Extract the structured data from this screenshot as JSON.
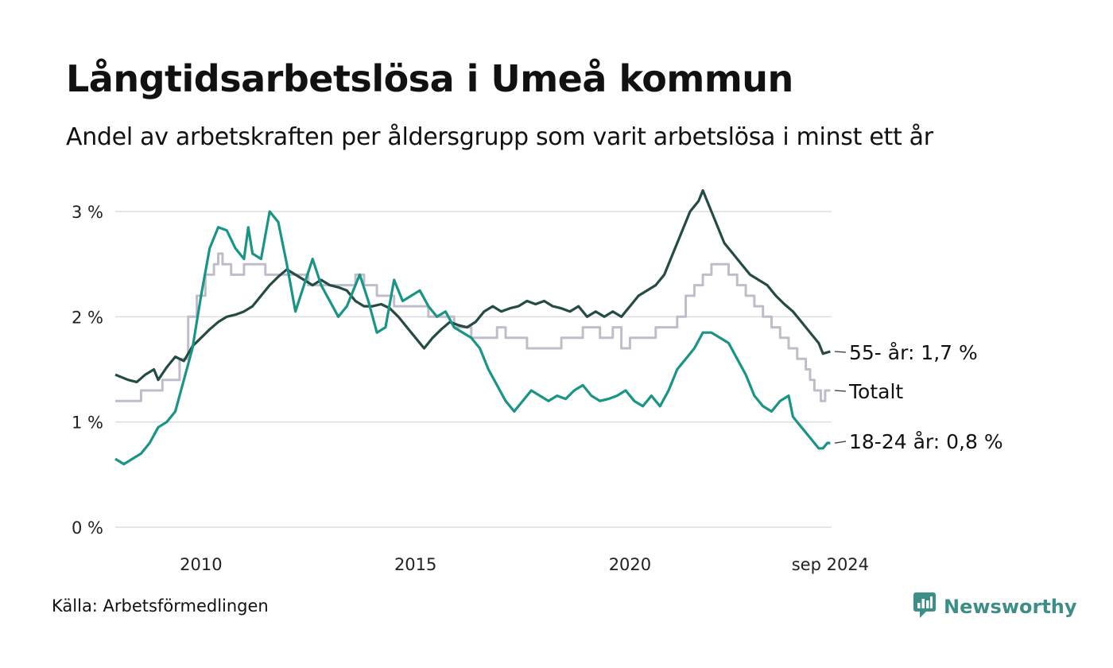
{
  "header": {
    "title": "Långtidsarbetslösa i Umeå kommun",
    "subtitle": "Andel av arbetskraften per åldersgrupp som varit arbetslösa i minst ett år"
  },
  "footer": {
    "source": "Källa: Arbetsförmedlingen",
    "brand_name": "Newsworthy",
    "brand_icon": "newsworthy-logo-icon",
    "brand_color": "#3c8e87"
  },
  "chart_data": {
    "type": "line",
    "x_unit": "year",
    "xlim": [
      2008,
      2024.7
    ],
    "ylim": [
      0,
      3.2
    ],
    "y_ticks": [
      0,
      1,
      2,
      3
    ],
    "y_tick_labels": [
      "0 %",
      "1 %",
      "2 %",
      "3 %"
    ],
    "x_ticks": [
      2010,
      2015,
      2020,
      2024.67
    ],
    "x_tick_labels": [
      "2010",
      "2015",
      "2020",
      "sep 2024"
    ],
    "grid": "horizontal",
    "legend": "direct labels at line ends (right)",
    "series": [
      {
        "name": "Totalt",
        "end_label": "Totalt",
        "color": "#c0bdca",
        "points": [
          [
            2008.0,
            1.2
          ],
          [
            2008.5,
            1.2
          ],
          [
            2008.6,
            1.3
          ],
          [
            2009.0,
            1.3
          ],
          [
            2009.1,
            1.4
          ],
          [
            2009.3,
            1.4
          ],
          [
            2009.5,
            1.6
          ],
          [
            2009.7,
            2.0
          ],
          [
            2009.9,
            2.2
          ],
          [
            2010.1,
            2.4
          ],
          [
            2010.3,
            2.5
          ],
          [
            2010.4,
            2.6
          ],
          [
            2010.5,
            2.5
          ],
          [
            2010.7,
            2.4
          ],
          [
            2011.0,
            2.5
          ],
          [
            2011.2,
            2.5
          ],
          [
            2011.5,
            2.4
          ],
          [
            2012.0,
            2.4
          ],
          [
            2012.5,
            2.3
          ],
          [
            2013.0,
            2.3
          ],
          [
            2013.3,
            2.3
          ],
          [
            2013.6,
            2.4
          ],
          [
            2013.8,
            2.3
          ],
          [
            2014.1,
            2.2
          ],
          [
            2014.5,
            2.1
          ],
          [
            2015.0,
            2.1
          ],
          [
            2015.3,
            2.0
          ],
          [
            2015.6,
            2.0
          ],
          [
            2015.9,
            1.9
          ],
          [
            2016.1,
            1.9
          ],
          [
            2016.3,
            1.8
          ],
          [
            2016.7,
            1.8
          ],
          [
            2016.9,
            1.9
          ],
          [
            2017.1,
            1.8
          ],
          [
            2017.4,
            1.8
          ],
          [
            2017.6,
            1.7
          ],
          [
            2018.2,
            1.7
          ],
          [
            2018.4,
            1.8
          ],
          [
            2018.7,
            1.8
          ],
          [
            2018.9,
            1.9
          ],
          [
            2019.1,
            1.9
          ],
          [
            2019.3,
            1.8
          ],
          [
            2019.6,
            1.9
          ],
          [
            2019.8,
            1.7
          ],
          [
            2020.0,
            1.8
          ],
          [
            2020.5,
            1.8
          ],
          [
            2020.6,
            1.9
          ],
          [
            2021.0,
            1.9
          ],
          [
            2021.1,
            2.0
          ],
          [
            2021.3,
            2.2
          ],
          [
            2021.5,
            2.3
          ],
          [
            2021.7,
            2.4
          ],
          [
            2021.9,
            2.5
          ],
          [
            2022.1,
            2.5
          ],
          [
            2022.3,
            2.4
          ],
          [
            2022.5,
            2.3
          ],
          [
            2022.7,
            2.2
          ],
          [
            2022.9,
            2.1
          ],
          [
            2023.1,
            2.0
          ],
          [
            2023.3,
            1.9
          ],
          [
            2023.5,
            1.8
          ],
          [
            2023.7,
            1.7
          ],
          [
            2023.9,
            1.6
          ],
          [
            2024.1,
            1.5
          ],
          [
            2024.2,
            1.4
          ],
          [
            2024.3,
            1.3
          ],
          [
            2024.45,
            1.2
          ],
          [
            2024.55,
            1.3
          ],
          [
            2024.67,
            1.3
          ]
        ]
      },
      {
        "name": "55- år",
        "end_label": "55- år: 1,7 %",
        "color": "#254b45",
        "points": [
          [
            2008.0,
            1.45
          ],
          [
            2008.3,
            1.4
          ],
          [
            2008.5,
            1.38
          ],
          [
            2008.7,
            1.45
          ],
          [
            2008.9,
            1.5
          ],
          [
            2009.0,
            1.4
          ],
          [
            2009.2,
            1.52
          ],
          [
            2009.4,
            1.62
          ],
          [
            2009.6,
            1.58
          ],
          [
            2009.8,
            1.72
          ],
          [
            2010.0,
            1.8
          ],
          [
            2010.2,
            1.88
          ],
          [
            2010.4,
            1.95
          ],
          [
            2010.6,
            2.0
          ],
          [
            2010.8,
            2.02
          ],
          [
            2011.0,
            2.05
          ],
          [
            2011.2,
            2.1
          ],
          [
            2011.4,
            2.2
          ],
          [
            2011.6,
            2.3
          ],
          [
            2011.8,
            2.38
          ],
          [
            2012.0,
            2.45
          ],
          [
            2012.2,
            2.4
          ],
          [
            2012.4,
            2.35
          ],
          [
            2012.6,
            2.3
          ],
          [
            2012.8,
            2.35
          ],
          [
            2013.0,
            2.3
          ],
          [
            2013.2,
            2.28
          ],
          [
            2013.4,
            2.25
          ],
          [
            2013.6,
            2.15
          ],
          [
            2013.8,
            2.1
          ],
          [
            2014.0,
            2.1
          ],
          [
            2014.2,
            2.12
          ],
          [
            2014.4,
            2.08
          ],
          [
            2014.6,
            2.0
          ],
          [
            2014.8,
            1.9
          ],
          [
            2015.0,
            1.8
          ],
          [
            2015.2,
            1.7
          ],
          [
            2015.4,
            1.8
          ],
          [
            2015.6,
            1.88
          ],
          [
            2015.8,
            1.95
          ],
          [
            2016.0,
            1.92
          ],
          [
            2016.2,
            1.9
          ],
          [
            2016.4,
            1.95
          ],
          [
            2016.6,
            2.05
          ],
          [
            2016.8,
            2.1
          ],
          [
            2017.0,
            2.05
          ],
          [
            2017.2,
            2.08
          ],
          [
            2017.4,
            2.1
          ],
          [
            2017.6,
            2.15
          ],
          [
            2017.8,
            2.12
          ],
          [
            2018.0,
            2.15
          ],
          [
            2018.2,
            2.1
          ],
          [
            2018.4,
            2.08
          ],
          [
            2018.6,
            2.05
          ],
          [
            2018.8,
            2.1
          ],
          [
            2019.0,
            2.0
          ],
          [
            2019.2,
            2.05
          ],
          [
            2019.4,
            2.0
          ],
          [
            2019.6,
            2.05
          ],
          [
            2019.8,
            2.0
          ],
          [
            2020.0,
            2.1
          ],
          [
            2020.2,
            2.2
          ],
          [
            2020.4,
            2.25
          ],
          [
            2020.6,
            2.3
          ],
          [
            2020.8,
            2.4
          ],
          [
            2021.0,
            2.6
          ],
          [
            2021.2,
            2.8
          ],
          [
            2021.4,
            3.0
          ],
          [
            2021.6,
            3.1
          ],
          [
            2021.7,
            3.2
          ],
          [
            2021.8,
            3.1
          ],
          [
            2022.0,
            2.9
          ],
          [
            2022.2,
            2.7
          ],
          [
            2022.4,
            2.6
          ],
          [
            2022.6,
            2.5
          ],
          [
            2022.8,
            2.4
          ],
          [
            2023.0,
            2.35
          ],
          [
            2023.2,
            2.3
          ],
          [
            2023.4,
            2.2
          ],
          [
            2023.6,
            2.12
          ],
          [
            2023.8,
            2.05
          ],
          [
            2024.0,
            1.95
          ],
          [
            2024.2,
            1.85
          ],
          [
            2024.4,
            1.75
          ],
          [
            2024.5,
            1.65
          ],
          [
            2024.67,
            1.67
          ]
        ]
      },
      {
        "name": "18-24 år",
        "end_label": "18-24 år: 0,8 %",
        "color": "#1a9484",
        "points": [
          [
            2008.0,
            0.65
          ],
          [
            2008.2,
            0.6
          ],
          [
            2008.4,
            0.65
          ],
          [
            2008.6,
            0.7
          ],
          [
            2008.8,
            0.8
          ],
          [
            2009.0,
            0.95
          ],
          [
            2009.2,
            1.0
          ],
          [
            2009.4,
            1.1
          ],
          [
            2009.6,
            1.4
          ],
          [
            2009.8,
            1.7
          ],
          [
            2010.0,
            2.2
          ],
          [
            2010.2,
            2.65
          ],
          [
            2010.4,
            2.85
          ],
          [
            2010.6,
            2.82
          ],
          [
            2010.8,
            2.65
          ],
          [
            2011.0,
            2.55
          ],
          [
            2011.1,
            2.85
          ],
          [
            2011.2,
            2.6
          ],
          [
            2011.4,
            2.55
          ],
          [
            2011.6,
            3.0
          ],
          [
            2011.8,
            2.9
          ],
          [
            2012.0,
            2.5
          ],
          [
            2012.2,
            2.05
          ],
          [
            2012.4,
            2.3
          ],
          [
            2012.6,
            2.55
          ],
          [
            2012.8,
            2.3
          ],
          [
            2013.0,
            2.15
          ],
          [
            2013.2,
            2.0
          ],
          [
            2013.4,
            2.1
          ],
          [
            2013.6,
            2.3
          ],
          [
            2013.7,
            2.4
          ],
          [
            2013.9,
            2.15
          ],
          [
            2014.1,
            1.85
          ],
          [
            2014.3,
            1.9
          ],
          [
            2014.5,
            2.35
          ],
          [
            2014.7,
            2.15
          ],
          [
            2014.9,
            2.2
          ],
          [
            2015.1,
            2.25
          ],
          [
            2015.3,
            2.1
          ],
          [
            2015.5,
            2.0
          ],
          [
            2015.7,
            2.05
          ],
          [
            2015.9,
            1.9
          ],
          [
            2016.1,
            1.85
          ],
          [
            2016.3,
            1.8
          ],
          [
            2016.5,
            1.7
          ],
          [
            2016.7,
            1.5
          ],
          [
            2016.9,
            1.35
          ],
          [
            2017.1,
            1.2
          ],
          [
            2017.3,
            1.1
          ],
          [
            2017.5,
            1.2
          ],
          [
            2017.7,
            1.3
          ],
          [
            2017.9,
            1.25
          ],
          [
            2018.1,
            1.2
          ],
          [
            2018.3,
            1.25
          ],
          [
            2018.5,
            1.22
          ],
          [
            2018.7,
            1.3
          ],
          [
            2018.9,
            1.35
          ],
          [
            2019.1,
            1.25
          ],
          [
            2019.3,
            1.2
          ],
          [
            2019.5,
            1.22
          ],
          [
            2019.7,
            1.25
          ],
          [
            2019.9,
            1.3
          ],
          [
            2020.1,
            1.2
          ],
          [
            2020.3,
            1.15
          ],
          [
            2020.5,
            1.25
          ],
          [
            2020.7,
            1.15
          ],
          [
            2020.9,
            1.3
          ],
          [
            2021.1,
            1.5
          ],
          [
            2021.3,
            1.6
          ],
          [
            2021.5,
            1.7
          ],
          [
            2021.7,
            1.85
          ],
          [
            2021.9,
            1.85
          ],
          [
            2022.1,
            1.8
          ],
          [
            2022.3,
            1.75
          ],
          [
            2022.5,
            1.6
          ],
          [
            2022.7,
            1.45
          ],
          [
            2022.9,
            1.25
          ],
          [
            2023.1,
            1.15
          ],
          [
            2023.3,
            1.1
          ],
          [
            2023.5,
            1.2
          ],
          [
            2023.7,
            1.25
          ],
          [
            2023.8,
            1.05
          ],
          [
            2023.9,
            1.0
          ],
          [
            2024.0,
            0.95
          ],
          [
            2024.1,
            0.9
          ],
          [
            2024.2,
            0.85
          ],
          [
            2024.3,
            0.8
          ],
          [
            2024.4,
            0.75
          ],
          [
            2024.5,
            0.75
          ],
          [
            2024.6,
            0.8
          ],
          [
            2024.67,
            0.8
          ]
        ]
      }
    ]
  }
}
